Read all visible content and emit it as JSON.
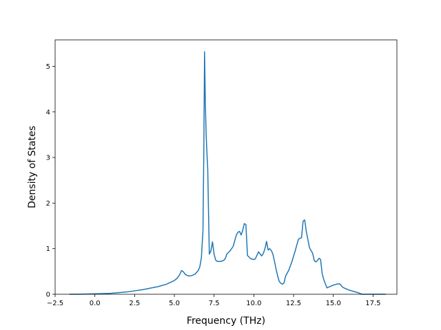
{
  "chart_data": {
    "type": "line",
    "xlabel": "Frequency (THz)",
    "ylabel": "Density of States",
    "xlim": [
      -2.5,
      19.0
    ],
    "ylim": [
      0,
      5.58
    ],
    "xticks": [
      -2.5,
      0.0,
      2.5,
      5.0,
      7.5,
      10.0,
      12.5,
      15.0,
      17.5
    ],
    "xtick_labels": [
      "−2.5",
      "0.0",
      "2.5",
      "5.0",
      "7.5",
      "10.0",
      "12.5",
      "15.0",
      "17.5"
    ],
    "yticks": [
      0,
      1,
      2,
      3,
      4,
      5
    ],
    "ytick_labels": [
      "0",
      "1",
      "2",
      "3",
      "4",
      "5"
    ],
    "grid": false,
    "series": [
      {
        "color": "#1f77b4",
        "x": [
          -1.6,
          -1.0,
          0.0,
          1.0,
          2.0,
          3.0,
          4.0,
          4.5,
          5.0,
          5.2,
          5.35,
          5.45,
          5.55,
          5.7,
          5.9,
          6.1,
          6.3,
          6.5,
          6.6,
          6.7,
          6.75,
          6.8,
          6.85,
          6.9,
          6.95,
          7.0,
          7.05,
          7.1,
          7.15,
          7.2,
          7.3,
          7.4,
          7.5,
          7.6,
          7.7,
          7.9,
          8.1,
          8.2,
          8.3,
          8.5,
          8.7,
          8.9,
          9.0,
          9.1,
          9.2,
          9.3,
          9.4,
          9.5,
          9.6,
          9.8,
          10.0,
          10.1,
          10.2,
          10.3,
          10.4,
          10.5,
          10.6,
          10.7,
          10.8,
          10.9,
          11.0,
          11.1,
          11.2,
          11.3,
          11.4,
          11.5,
          11.6,
          11.7,
          11.8,
          11.9,
          12.0,
          12.2,
          12.4,
          12.6,
          12.8,
          12.9,
          13.0,
          13.05,
          13.1,
          13.15,
          13.2,
          13.3,
          13.5,
          13.7,
          13.8,
          13.9,
          14.0,
          14.1,
          14.2,
          14.3,
          14.4,
          14.6,
          14.8,
          15.0,
          15.2,
          15.4,
          15.6,
          15.8,
          16.0,
          16.3,
          16.6,
          16.8,
          17.2,
          17.6,
          18.0,
          18.3
        ],
        "y": [
          0.0,
          0.0,
          0.01,
          0.02,
          0.05,
          0.1,
          0.17,
          0.22,
          0.3,
          0.36,
          0.44,
          0.52,
          0.5,
          0.43,
          0.4,
          0.41,
          0.44,
          0.52,
          0.6,
          0.8,
          1.1,
          1.4,
          3.0,
          5.32,
          4.2,
          3.5,
          3.1,
          2.75,
          1.8,
          0.88,
          0.95,
          1.15,
          0.88,
          0.75,
          0.72,
          0.72,
          0.74,
          0.78,
          0.88,
          0.95,
          1.05,
          1.3,
          1.36,
          1.38,
          1.3,
          1.4,
          1.55,
          1.53,
          0.85,
          0.78,
          0.76,
          0.78,
          0.86,
          0.93,
          0.88,
          0.84,
          0.9,
          1.0,
          1.16,
          0.97,
          1.0,
          0.96,
          0.88,
          0.72,
          0.55,
          0.4,
          0.28,
          0.24,
          0.22,
          0.25,
          0.4,
          0.53,
          0.72,
          0.95,
          1.2,
          1.23,
          1.24,
          1.42,
          1.6,
          1.62,
          1.63,
          1.38,
          1.02,
          0.9,
          0.74,
          0.71,
          0.74,
          0.79,
          0.76,
          0.45,
          0.32,
          0.14,
          0.17,
          0.2,
          0.22,
          0.23,
          0.15,
          0.12,
          0.09,
          0.06,
          0.03,
          0.0,
          0.0,
          0.0,
          0.0,
          0.0
        ]
      }
    ]
  }
}
